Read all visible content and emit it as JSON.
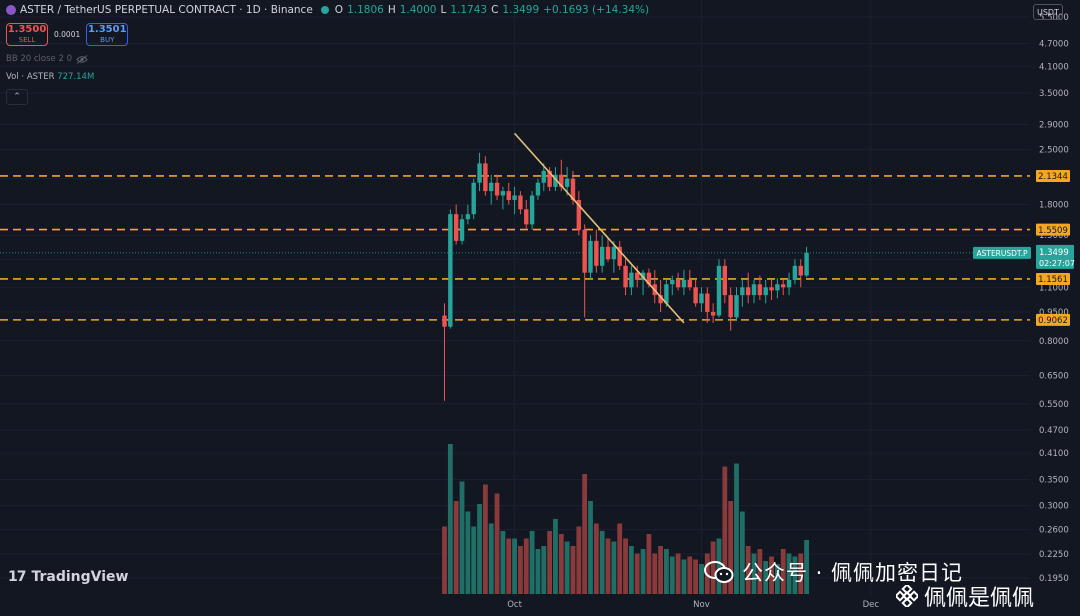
{
  "header": {
    "symbol": "ASTER / TetherUS PERPETUAL CONTRACT · 1D · Binance",
    "o_label": "O",
    "o": "1.1806",
    "h_label": "H",
    "h": "1.4000",
    "l_label": "L",
    "l": "1.1743",
    "c_label": "C",
    "c": "1.3499",
    "change": "+0.1693 (+14.34%)"
  },
  "trade": {
    "sell_price": "1.3500",
    "sell_label": "SELL",
    "spread": "0.0001",
    "buy_price": "1.3501",
    "buy_label": "BUY"
  },
  "indicators": {
    "bb": "BB 20 close 2 0",
    "vol_label": "Vol · ASTER",
    "vol_value": "727.14M"
  },
  "currency": "USDT",
  "tv_logo": "TradingView",
  "watermark": {
    "line1": "公众号 · 佩佩加密日记",
    "line2": "佩佩是佩佩"
  },
  "colors": {
    "up": "#26a69a",
    "down": "#ef5350",
    "level": "#f5a623",
    "trendline": "#e8c27a",
    "background": "#131722"
  },
  "chart_data": {
    "type": "candlestick",
    "title": "ASTER / TetherUS PERPETUAL CONTRACT · 1D · Binance",
    "scale": "log",
    "ylim": [
      0.17,
      5.8
    ],
    "y_ticks": [
      "5.5000",
      "4.7000",
      "4.1000",
      "3.5000",
      "2.9000",
      "2.5000",
      "2.1000",
      "1.8000",
      "1.5000",
      "1.3000",
      "1.1000",
      "0.9500",
      "0.8000",
      "0.6500",
      "0.5500",
      "0.4700",
      "0.4100",
      "0.3500",
      "0.3000",
      "0.2600",
      "0.2250",
      "0.1950"
    ],
    "x_ticks": [
      "Oct",
      "Nov",
      "Dec"
    ],
    "levels": [
      {
        "value": 2.1344,
        "label": "2.1344"
      },
      {
        "value": 1.5509,
        "label": "1.5509"
      },
      {
        "value": 1.1561,
        "label": "1.1561"
      },
      {
        "value": 0.9062,
        "label": "0.9062"
      }
    ],
    "last_price": {
      "symbol": "ASTERUSDT.P",
      "price": "1.3499",
      "countdown": "02:27:07",
      "value": 1.3499
    },
    "trendline": [
      {
        "from": 2.75
      },
      {
        "to": 0.89
      }
    ],
    "candles": [
      [
        0.93,
        1.0,
        0.56,
        0.87
      ],
      [
        0.87,
        1.75,
        0.86,
        1.7
      ],
      [
        1.7,
        1.8,
        1.42,
        1.45
      ],
      [
        1.45,
        1.7,
        1.42,
        1.65
      ],
      [
        1.65,
        1.8,
        1.6,
        1.7
      ],
      [
        1.7,
        2.1,
        1.65,
        2.05
      ],
      [
        2.05,
        2.45,
        1.95,
        2.3
      ],
      [
        2.3,
        2.4,
        1.9,
        1.95
      ],
      [
        1.95,
        2.15,
        1.8,
        2.05
      ],
      [
        2.05,
        2.15,
        1.85,
        1.9
      ],
      [
        1.9,
        2.0,
        1.75,
        1.95
      ],
      [
        1.95,
        2.05,
        1.8,
        1.85
      ],
      [
        1.85,
        2.0,
        1.7,
        1.9
      ],
      [
        1.9,
        1.95,
        1.7,
        1.75
      ],
      [
        1.75,
        1.85,
        1.55,
        1.6
      ],
      [
        1.6,
        1.95,
        1.55,
        1.9
      ],
      [
        1.9,
        2.1,
        1.85,
        2.05
      ],
      [
        2.05,
        2.3,
        1.95,
        2.2
      ],
      [
        2.2,
        2.25,
        1.95,
        2.0
      ],
      [
        2.0,
        2.25,
        1.95,
        2.15
      ],
      [
        2.15,
        2.35,
        1.95,
        2.0
      ],
      [
        2.0,
        2.25,
        1.9,
        2.1
      ],
      [
        2.1,
        2.2,
        1.8,
        1.85
      ],
      [
        1.85,
        1.95,
        1.5,
        1.55
      ],
      [
        1.55,
        1.6,
        0.92,
        1.2
      ],
      [
        1.2,
        1.5,
        1.15,
        1.45
      ],
      [
        1.45,
        1.55,
        1.2,
        1.25
      ],
      [
        1.25,
        1.5,
        1.2,
        1.4
      ],
      [
        1.4,
        1.48,
        1.28,
        1.3
      ],
      [
        1.3,
        1.45,
        1.2,
        1.4
      ],
      [
        1.4,
        1.45,
        1.22,
        1.25
      ],
      [
        1.25,
        1.3,
        1.05,
        1.1
      ],
      [
        1.1,
        1.25,
        1.05,
        1.2
      ],
      [
        1.2,
        1.25,
        1.1,
        1.15
      ],
      [
        1.15,
        1.22,
        1.05,
        1.2
      ],
      [
        1.2,
        1.23,
        1.1,
        1.12
      ],
      [
        1.12,
        1.22,
        1.0,
        1.05
      ],
      [
        1.05,
        1.15,
        0.95,
        1.0
      ],
      [
        1.0,
        1.15,
        0.98,
        1.12
      ],
      [
        1.12,
        1.18,
        1.05,
        1.15
      ],
      [
        1.15,
        1.2,
        1.08,
        1.1
      ],
      [
        1.1,
        1.22,
        1.05,
        1.15
      ],
      [
        1.15,
        1.22,
        1.08,
        1.1
      ],
      [
        1.1,
        1.15,
        0.98,
        1.0
      ],
      [
        1.0,
        1.1,
        0.95,
        1.06
      ],
      [
        1.06,
        1.1,
        0.89,
        0.95
      ],
      [
        0.95,
        1.0,
        0.89,
        0.93
      ],
      [
        0.93,
        1.3,
        0.92,
        1.25
      ],
      [
        1.25,
        1.3,
        1.0,
        1.05
      ],
      [
        1.05,
        1.1,
        0.85,
        0.92
      ],
      [
        0.92,
        1.1,
        0.9,
        1.05
      ],
      [
        1.05,
        1.15,
        0.98,
        1.1
      ],
      [
        1.1,
        1.2,
        1.0,
        1.05
      ],
      [
        1.05,
        1.15,
        1.0,
        1.12
      ],
      [
        1.12,
        1.18,
        1.02,
        1.05
      ],
      [
        1.05,
        1.15,
        1.0,
        1.1
      ],
      [
        1.1,
        1.15,
        1.02,
        1.08
      ],
      [
        1.08,
        1.16,
        1.03,
        1.12
      ],
      [
        1.12,
        1.15,
        1.05,
        1.1
      ],
      [
        1.1,
        1.2,
        1.05,
        1.15
      ],
      [
        1.15,
        1.3,
        1.12,
        1.25
      ],
      [
        1.25,
        1.3,
        1.1,
        1.18
      ],
      [
        1.18,
        1.4,
        1.17,
        1.35
      ]
    ],
    "volumes": [
      0.45,
      1.0,
      0.62,
      0.75,
      0.55,
      0.45,
      0.6,
      0.73,
      0.47,
      0.67,
      0.42,
      0.37,
      0.37,
      0.32,
      0.37,
      0.42,
      0.3,
      0.32,
      0.42,
      0.5,
      0.4,
      0.35,
      0.32,
      0.45,
      0.8,
      0.62,
      0.47,
      0.42,
      0.37,
      0.35,
      0.47,
      0.37,
      0.32,
      0.27,
      0.3,
      0.4,
      0.27,
      0.32,
      0.3,
      0.25,
      0.27,
      0.23,
      0.25,
      0.23,
      0.2,
      0.27,
      0.35,
      0.37,
      0.85,
      0.62,
      0.87,
      0.55,
      0.32,
      0.27,
      0.3,
      0.22,
      0.25,
      0.2,
      0.3,
      0.27,
      0.25,
      0.27,
      0.36
    ]
  }
}
